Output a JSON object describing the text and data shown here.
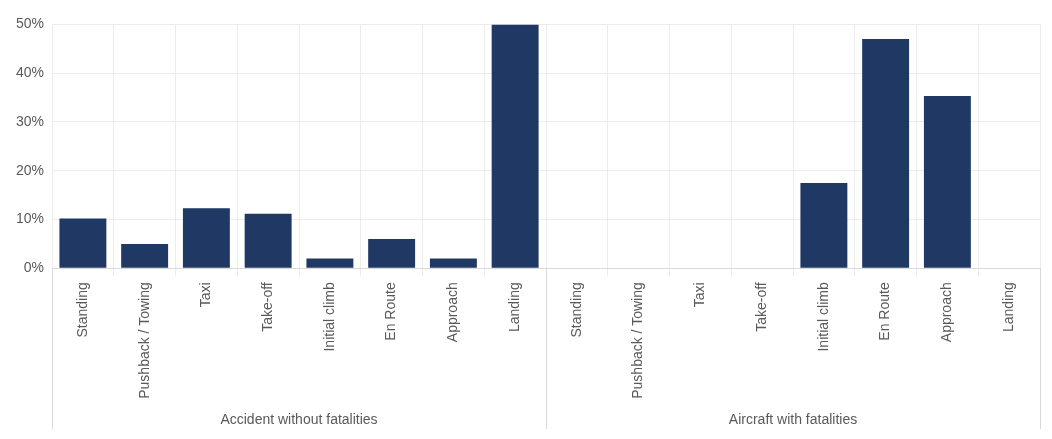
{
  "chart_data": {
    "type": "bar",
    "categories": [
      "Standing",
      "Pushback / Towing",
      "Taxi",
      "Take-off",
      "Initial climb",
      "En Route",
      "Approach",
      "Landing",
      "Standing",
      "Pushback / Towing",
      "Taxi",
      "Take-off",
      "Initial climb",
      "En Route",
      "Approach",
      "Landing"
    ],
    "values": [
      10.2,
      5.0,
      12.3,
      11.2,
      2.0,
      6.0,
      2.0,
      50,
      0,
      0,
      0,
      0,
      17.5,
      47.0,
      35.3,
      0
    ],
    "color": "#203864",
    "ylim": [
      0,
      50
    ],
    "yticks": [
      {
        "value": 0,
        "label": "0%"
      },
      {
        "value": 10,
        "label": "10%"
      },
      {
        "value": 20,
        "label": "20%"
      },
      {
        "value": 30,
        "label": "30%"
      },
      {
        "value": 40,
        "label": "40%"
      },
      {
        "value": 50,
        "label": "50%"
      }
    ],
    "grid": true,
    "annotations": [
      "Accident without fatalities",
      "Aircraft with fatalities"
    ]
  }
}
